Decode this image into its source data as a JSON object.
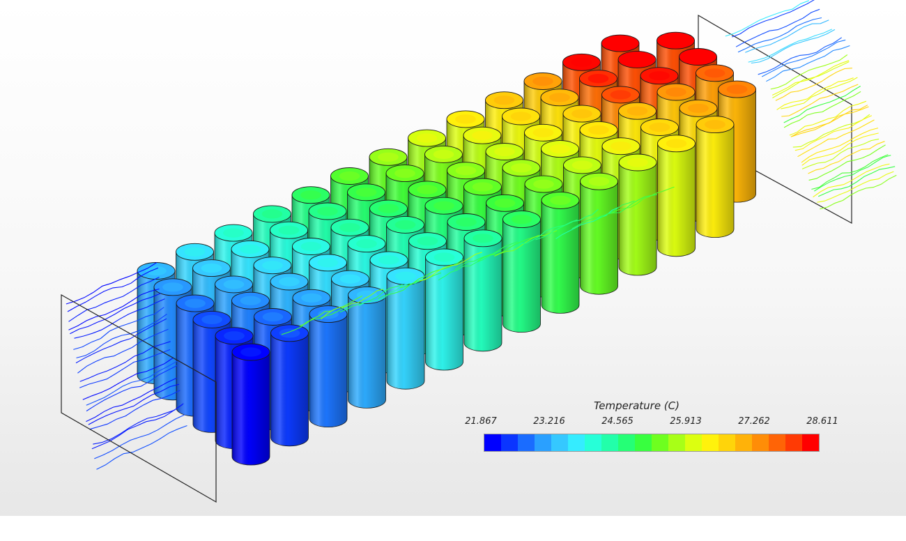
{
  "figure": {
    "legend_title": "Temperature (C)",
    "colorbar_ticks": [
      "21.867",
      "23.216",
      "24.565",
      "25.913",
      "27.262",
      "28.611"
    ],
    "colormap": [
      "#0000ff",
      "#0b35ff",
      "#1a6cff",
      "#2aa0ff",
      "#35c8ff",
      "#35ecff",
      "#27ffd8",
      "#22ffaa",
      "#25ff76",
      "#38ff3f",
      "#6eff1f",
      "#a8ff17",
      "#dcff10",
      "#fff20c",
      "#ffd40a",
      "#ffb209",
      "#ff8d07",
      "#ff6406",
      "#ff3a04",
      "#ff0000"
    ],
    "scale_min": 21.867,
    "scale_max": 28.611
  },
  "caption": "                                                                         "
}
